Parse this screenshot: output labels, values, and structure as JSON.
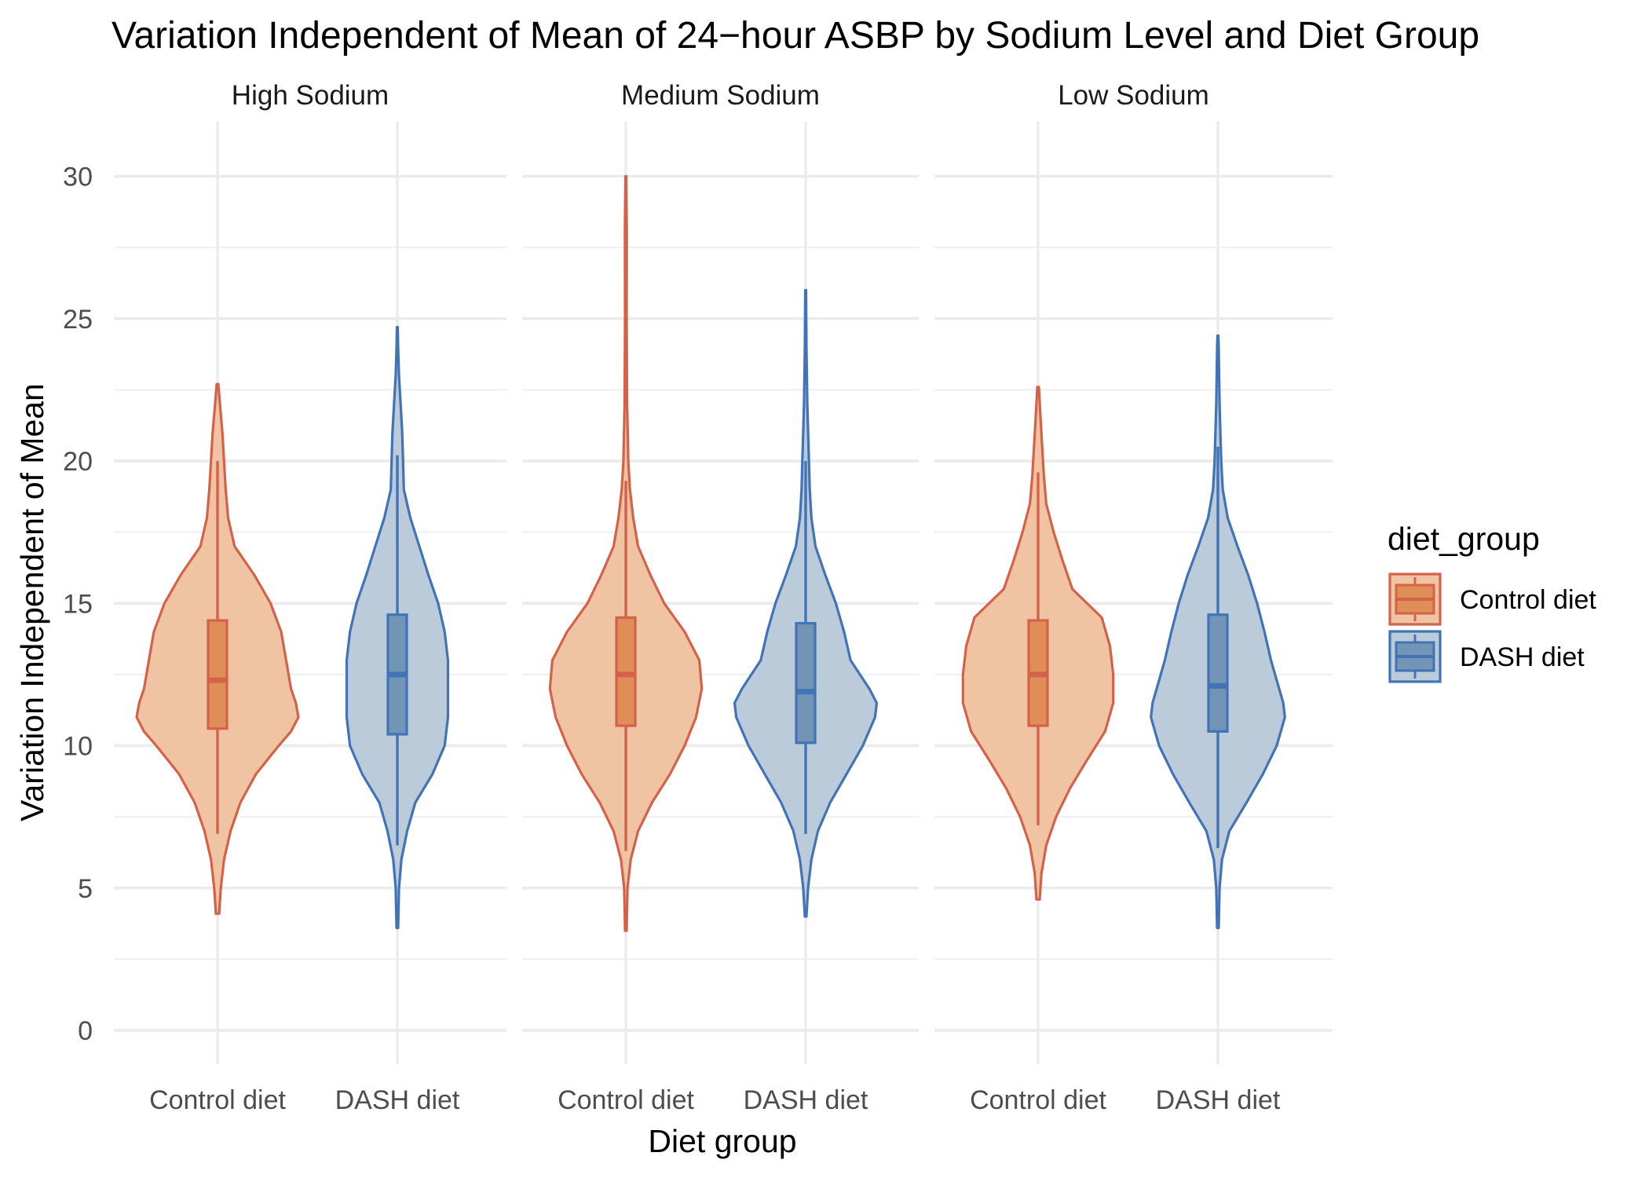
{
  "chart_data": {
    "type": "violin",
    "title": "Variation Independent of Mean of 24−hour ASBP by Sodium Level and Diet Group",
    "xlabel": "Diet group",
    "ylabel": "Variation Independent of Mean",
    "ylim": [
      -1.3,
      31.5
    ],
    "yticks": [
      0,
      5,
      10,
      15,
      20,
      25,
      30
    ],
    "grid": true,
    "legend": {
      "title": "diet_group",
      "position": "right",
      "entries": [
        {
          "label": "Control diet",
          "fill": "#f0c4a3",
          "box_fill": "#df8e57",
          "stroke": "#d4624a"
        },
        {
          "label": "DASH diet",
          "fill": "#bccbd9",
          "box_fill": "#7395b5",
          "stroke": "#4173b6"
        }
      ]
    },
    "categories": [
      "Control diet",
      "DASH diet"
    ],
    "facets": [
      {
        "label": "High Sodium",
        "groups": [
          {
            "diet": "Control diet",
            "violin_range": [
              4.1,
              22.7
            ],
            "box": {
              "min": 6.9,
              "q1": 10.6,
              "median": 12.3,
              "q3": 14.4,
              "max": 20.0
            },
            "density": [
              [
                4.1,
                0.02
              ],
              [
                5.0,
                0.04
              ],
              [
                6.0,
                0.08
              ],
              [
                7.0,
                0.16
              ],
              [
                8.0,
                0.28
              ],
              [
                9.0,
                0.47
              ],
              [
                10.0,
                0.75
              ],
              [
                10.5,
                0.9
              ],
              [
                11.0,
                0.99
              ],
              [
                11.5,
                0.96
              ],
              [
                12.0,
                0.9
              ],
              [
                13.0,
                0.84
              ],
              [
                14.0,
                0.78
              ],
              [
                15.0,
                0.65
              ],
              [
                16.0,
                0.45
              ],
              [
                17.0,
                0.21
              ],
              [
                18.0,
                0.13
              ],
              [
                19.0,
                0.1
              ],
              [
                20.0,
                0.08
              ],
              [
                21.0,
                0.06
              ],
              [
                22.0,
                0.03
              ],
              [
                22.7,
                0.01
              ]
            ]
          },
          {
            "diet": "DASH diet",
            "violin_range": [
              3.6,
              24.7
            ],
            "box": {
              "min": 6.5,
              "q1": 10.4,
              "median": 12.5,
              "q3": 14.6,
              "max": 20.2
            },
            "density": [
              [
                3.6,
                0.01
              ],
              [
                5.0,
                0.02
              ],
              [
                6.0,
                0.05
              ],
              [
                7.0,
                0.12
              ],
              [
                8.0,
                0.22
              ],
              [
                9.0,
                0.43
              ],
              [
                10.0,
                0.58
              ],
              [
                11.0,
                0.62
              ],
              [
                12.0,
                0.62
              ],
              [
                13.0,
                0.62
              ],
              [
                14.0,
                0.58
              ],
              [
                15.0,
                0.5
              ],
              [
                16.0,
                0.38
              ],
              [
                17.0,
                0.27
              ],
              [
                18.0,
                0.16
              ],
              [
                19.0,
                0.08
              ],
              [
                20.0,
                0.07
              ],
              [
                21.0,
                0.06
              ],
              [
                22.0,
                0.04
              ],
              [
                23.0,
                0.02
              ],
              [
                24.0,
                0.01
              ],
              [
                24.7,
                0.005
              ]
            ]
          }
        ]
      },
      {
        "label": "Medium Sodium",
        "groups": [
          {
            "diet": "Control diet",
            "violin_range": [
              3.5,
              30.0
            ],
            "box": {
              "min": 6.3,
              "q1": 10.7,
              "median": 12.5,
              "q3": 14.5,
              "max": 19.3
            },
            "density": [
              [
                3.5,
                0.01
              ],
              [
                5.0,
                0.02
              ],
              [
                6.0,
                0.06
              ],
              [
                7.0,
                0.15
              ],
              [
                8.0,
                0.32
              ],
              [
                9.0,
                0.54
              ],
              [
                10.0,
                0.72
              ],
              [
                11.0,
                0.86
              ],
              [
                12.0,
                0.93
              ],
              [
                13.0,
                0.9
              ],
              [
                14.0,
                0.72
              ],
              [
                15.0,
                0.47
              ],
              [
                16.0,
                0.3
              ],
              [
                17.0,
                0.15
              ],
              [
                18.0,
                0.09
              ],
              [
                19.0,
                0.05
              ],
              [
                20.0,
                0.03
              ],
              [
                22.0,
                0.015
              ],
              [
                25.0,
                0.01
              ],
              [
                28.0,
                0.012
              ],
              [
                30.0,
                0.005
              ]
            ]
          },
          {
            "diet": "DASH diet",
            "violin_range": [
              4.0,
              26.0
            ],
            "box": {
              "min": 6.9,
              "q1": 10.1,
              "median": 11.9,
              "q3": 14.3,
              "max": 20.0
            },
            "density": [
              [
                4.0,
                0.01
              ],
              [
                5.0,
                0.03
              ],
              [
                6.0,
                0.07
              ],
              [
                7.0,
                0.15
              ],
              [
                8.0,
                0.3
              ],
              [
                9.0,
                0.5
              ],
              [
                10.0,
                0.7
              ],
              [
                11.0,
                0.85
              ],
              [
                11.5,
                0.87
              ],
              [
                12.0,
                0.78
              ],
              [
                13.0,
                0.55
              ],
              [
                14.0,
                0.47
              ],
              [
                15.0,
                0.37
              ],
              [
                16.0,
                0.24
              ],
              [
                17.0,
                0.12
              ],
              [
                18.0,
                0.07
              ],
              [
                19.0,
                0.05
              ],
              [
                20.0,
                0.04
              ],
              [
                22.0,
                0.02
              ],
              [
                24.0,
                0.01
              ],
              [
                26.0,
                0.005
              ]
            ]
          }
        ]
      },
      {
        "label": "Low Sodium",
        "groups": [
          {
            "diet": "Control diet",
            "violin_range": [
              4.6,
              22.6
            ],
            "box": {
              "min": 7.2,
              "q1": 10.7,
              "median": 12.5,
              "q3": 14.4,
              "max": 19.6
            },
            "density": [
              [
                4.6,
                0.02
              ],
              [
                5.5,
                0.04
              ],
              [
                6.5,
                0.1
              ],
              [
                7.5,
                0.22
              ],
              [
                8.5,
                0.39
              ],
              [
                9.5,
                0.6
              ],
              [
                10.5,
                0.82
              ],
              [
                11.5,
                0.92
              ],
              [
                12.5,
                0.92
              ],
              [
                13.5,
                0.88
              ],
              [
                14.5,
                0.78
              ],
              [
                15.5,
                0.42
              ],
              [
                16.5,
                0.3
              ],
              [
                17.5,
                0.19
              ],
              [
                18.5,
                0.1
              ],
              [
                19.5,
                0.07
              ],
              [
                20.5,
                0.05
              ],
              [
                21.5,
                0.03
              ],
              [
                22.6,
                0.01
              ]
            ]
          },
          {
            "diet": "DASH diet",
            "violin_range": [
              3.6,
              24.4
            ],
            "box": {
              "min": 6.4,
              "q1": 10.5,
              "median": 12.1,
              "q3": 14.6,
              "max": 20.5
            },
            "density": [
              [
                3.6,
                0.01
              ],
              [
                5.0,
                0.02
              ],
              [
                6.0,
                0.05
              ],
              [
                7.0,
                0.14
              ],
              [
                8.0,
                0.35
              ],
              [
                9.0,
                0.55
              ],
              [
                10.0,
                0.72
              ],
              [
                11.0,
                0.82
              ],
              [
                11.5,
                0.8
              ],
              [
                12.0,
                0.75
              ],
              [
                13.0,
                0.65
              ],
              [
                14.0,
                0.57
              ],
              [
                15.0,
                0.48
              ],
              [
                16.0,
                0.37
              ],
              [
                17.0,
                0.24
              ],
              [
                18.0,
                0.12
              ],
              [
                19.0,
                0.06
              ],
              [
                20.0,
                0.04
              ],
              [
                22.0,
                0.02
              ],
              [
                24.0,
                0.01
              ],
              [
                24.4,
                0.005
              ]
            ]
          }
        ]
      }
    ]
  }
}
